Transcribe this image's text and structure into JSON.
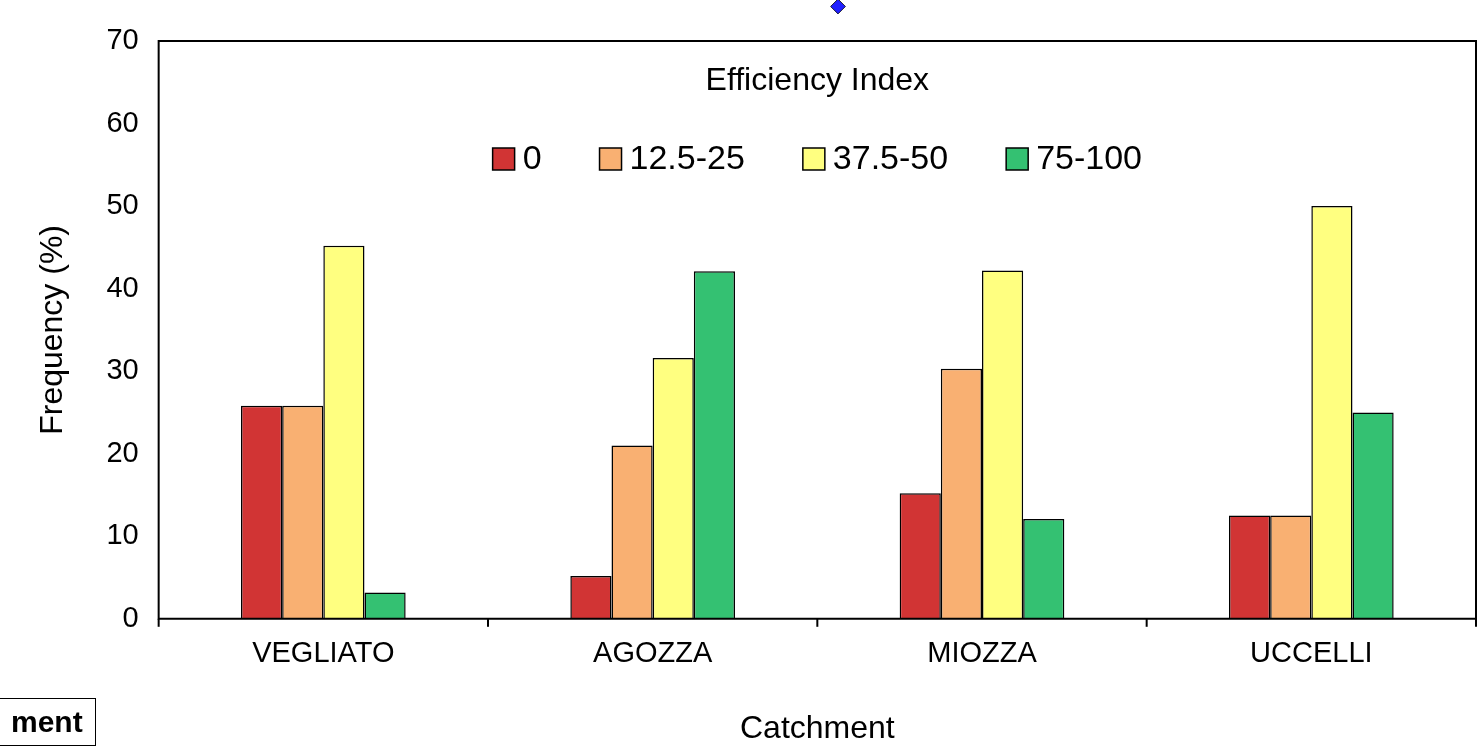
{
  "chart_data": {
    "type": "bar",
    "xlabel": "Catchment",
    "ylabel": "Frequency (%)",
    "legend_title": "Efficiency Index",
    "legend": "top",
    "grid": false,
    "categories": [
      "VEGLIATO",
      "AGOZZA",
      "MIOZZA",
      "UCCELLI"
    ],
    "series": [
      {
        "name": "0",
        "color": "#d13434",
        "values": [
          25.8,
          5.2,
          15.2,
          12.5
        ]
      },
      {
        "name": "12.5-25",
        "color": "#f9b072",
        "values": [
          25.8,
          21,
          30.3,
          12.5
        ]
      },
      {
        "name": "37.5-50",
        "color": "#ffff80",
        "values": [
          45.2,
          31.6,
          42.2,
          50
        ]
      },
      {
        "name": "75-100",
        "color": "#34c172",
        "values": [
          3.2,
          42.1,
          12.1,
          25
        ]
      }
    ],
    "ylim": [
      0,
      70
    ],
    "yticks": [
      0,
      10,
      20,
      30,
      40,
      50,
      60,
      70
    ],
    "annotations": [
      "ment"
    ]
  }
}
